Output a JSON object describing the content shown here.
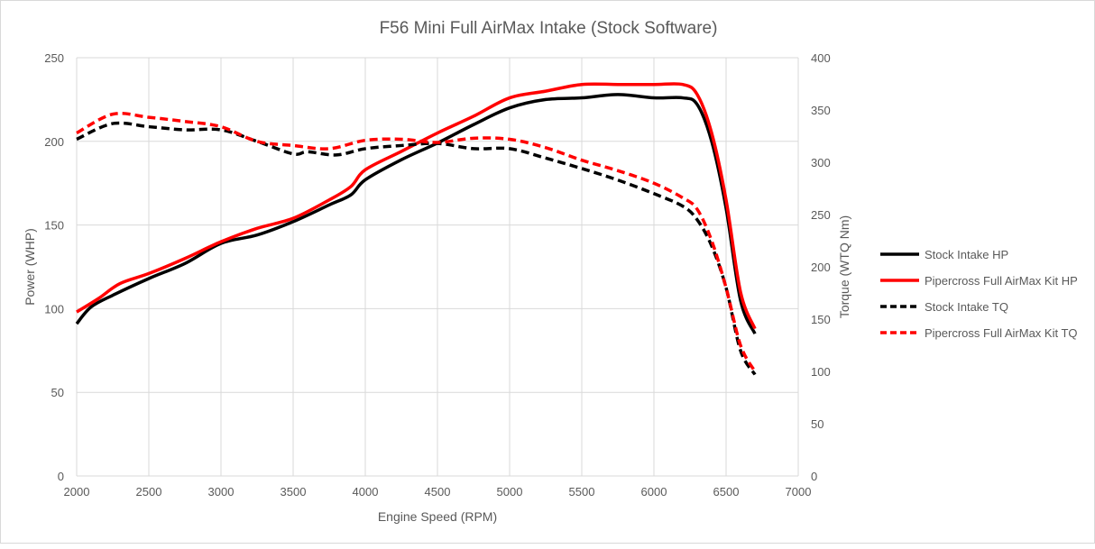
{
  "chart_data": {
    "type": "line",
    "title": "F56 Mini Full AirMax Intake (Stock Software)",
    "xlabel": "Engine Speed (RPM)",
    "ylabel": "Power (WHP)",
    "y2label": "Torque (WTQ Nm)",
    "xlim": [
      2000,
      7000
    ],
    "ylim": [
      0,
      250
    ],
    "y2lim": [
      0,
      400
    ],
    "xticks": [
      2000,
      2500,
      3000,
      3500,
      4000,
      4500,
      5000,
      5500,
      6000,
      6500,
      7000
    ],
    "yticks": [
      0,
      50,
      100,
      150,
      200,
      250
    ],
    "y2ticks": [
      0,
      50,
      100,
      150,
      200,
      250,
      300,
      350,
      400
    ],
    "grid": true,
    "legend": "right",
    "series": [
      {
        "name": "Stock Intake HP",
        "axis": "left",
        "color": "#000000",
        "dash": false,
        "x": [
          2000,
          2100,
          2250,
          2500,
          2750,
          3000,
          3250,
          3500,
          3750,
          3900,
          4000,
          4250,
          4500,
          4750,
          5000,
          5250,
          5500,
          5750,
          6000,
          6200,
          6300,
          6400,
          6500,
          6600,
          6700
        ],
        "y": [
          91,
          101,
          108,
          118,
          127,
          139,
          144,
          152,
          162,
          168,
          177,
          189,
          199,
          210,
          220,
          225,
          226,
          228,
          226,
          226,
          222,
          200,
          160,
          105,
          85
        ]
      },
      {
        "name": "Pipercross Full AirMax Kit HP",
        "axis": "left",
        "color": "#ff0000",
        "dash": false,
        "x": [
          2000,
          2150,
          2300,
          2500,
          2750,
          3000,
          3250,
          3500,
          3750,
          3900,
          4000,
          4250,
          4500,
          4750,
          5000,
          5250,
          5500,
          5750,
          6000,
          6200,
          6300,
          6400,
          6500,
          6600,
          6700
        ],
        "y": [
          98,
          106,
          115,
          121,
          130,
          140,
          148,
          154,
          165,
          173,
          183,
          194,
          205,
          215,
          226,
          230,
          234,
          234,
          234,
          234,
          228,
          205,
          165,
          110,
          88
        ]
      },
      {
        "name": "Stock Intake TQ",
        "axis": "right",
        "color": "#000000",
        "dash": true,
        "x": [
          2000,
          2250,
          2500,
          2750,
          3000,
          3250,
          3500,
          3600,
          3800,
          4000,
          4250,
          4500,
          4750,
          5000,
          5250,
          5500,
          5750,
          6000,
          6200,
          6300,
          6400,
          6500,
          6600,
          6700
        ],
        "y": [
          322,
          337,
          334,
          331,
          331,
          320,
          308,
          310,
          307,
          313,
          316,
          318,
          313,
          313,
          304,
          294,
          283,
          270,
          258,
          245,
          220,
          180,
          120,
          97
        ]
      },
      {
        "name": "Pipercross Full AirMax Kit TQ",
        "axis": "right",
        "color": "#ff0000",
        "dash": true,
        "x": [
          2000,
          2250,
          2500,
          2750,
          3000,
          3250,
          3500,
          3750,
          4000,
          4250,
          4500,
          4750,
          5000,
          5250,
          5500,
          5750,
          6000,
          6200,
          6300,
          6400,
          6500,
          6600,
          6700
        ],
        "y": [
          328,
          346,
          343,
          339,
          334,
          320,
          316,
          313,
          321,
          322,
          319,
          323,
          322,
          314,
          302,
          292,
          280,
          266,
          255,
          225,
          180,
          125,
          100
        ]
      }
    ]
  }
}
